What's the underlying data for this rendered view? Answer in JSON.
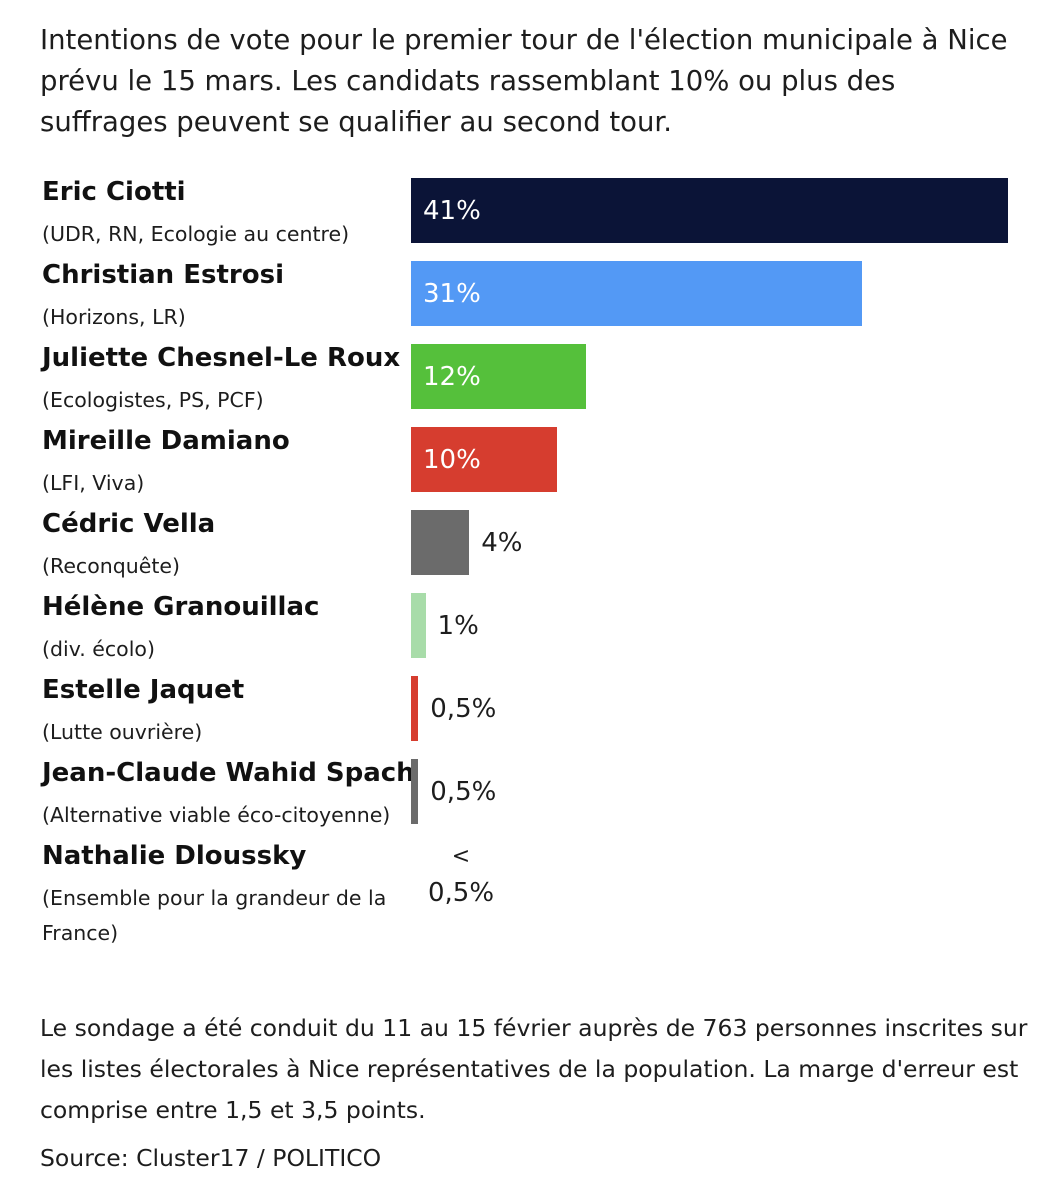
{
  "intro": "Intentions de vote pour le premier tour de l'élection municipale à Nice prévu le 15 mars. Les candidats rassemblant 10% ou plus des suffrages peuvent se qualifier au second tour.",
  "chart_data": {
    "type": "bar",
    "orientation": "horizontal",
    "title": "Intentions de vote pour le premier tour de l'élection municipale à Nice prévu le 15 mars. Les candidats rassemblant 10% ou plus des suffrages peuvent se qualifier au second tour.",
    "xlabel": "",
    "ylabel": "",
    "xlim": [
      0,
      41
    ],
    "grid": false,
    "legend": "none",
    "categories": [
      "Eric Ciotti",
      "Christian Estrosi",
      "Juliette Chesnel-Le Roux",
      "Mireille Damiano",
      "Cédric Vella",
      "Hélène Granouillac",
      "Estelle Jaquet",
      "Jean-Claude Wahid Spach",
      "Nathalie Dloussky"
    ],
    "values": [
      41,
      31,
      12,
      10,
      4,
      1,
      0.5,
      0.5,
      0
    ],
    "bars": [
      {
        "name": "Eric Ciotti",
        "party": "(UDR, RN, Ecologie au centre)",
        "value": 41,
        "label": "41%",
        "color": "#0b1437"
      },
      {
        "name": "Christian Estrosi",
        "party": "(Horizons, LR)",
        "value": 31,
        "label": "31%",
        "color": "#5399f5"
      },
      {
        "name": "Juliette Chesnel-Le Roux",
        "party": "(Ecologistes, PS, PCF)",
        "value": 12,
        "label": "12%",
        "color": "#55c03b"
      },
      {
        "name": "Mireille Damiano",
        "party": "(LFI, Viva)",
        "value": 10,
        "label": "10%",
        "color": "#d63d2f"
      },
      {
        "name": "Cédric Vella",
        "party": "(Reconquête)",
        "value": 4,
        "label": "4%",
        "color": "#6b6b6b"
      },
      {
        "name": "Hélène Granouillac",
        "party": "(div. écolo)",
        "value": 1,
        "label": "1%",
        "color": "#a8dca9"
      },
      {
        "name": "Estelle Jaquet",
        "party": "(Lutte ouvrière)",
        "value": 0.5,
        "label": "0,5%",
        "color": "#d63d2f"
      },
      {
        "name": "Jean-Claude Wahid Spach",
        "party": "(Alternative viable éco-citoyenne)",
        "value": 0.5,
        "label": "0,5%",
        "color": "#6b6b6b"
      },
      {
        "name": "Nathalie Dloussky",
        "party": "(Ensemble pour la grandeur de la France)",
        "value": 0,
        "label_prefix": "<",
        "label": "0,5%",
        "color": "#6b6b6b"
      }
    ]
  },
  "footnote": "Le sondage a été conduit du 11 au 15 février auprès de 763 personnes inscrites sur les listes électorales à Nice représentatives de la population. La marge d'erreur est comprise entre 1,5 et 3,5 points.",
  "source": "Source: Cluster17 / POLITICO"
}
